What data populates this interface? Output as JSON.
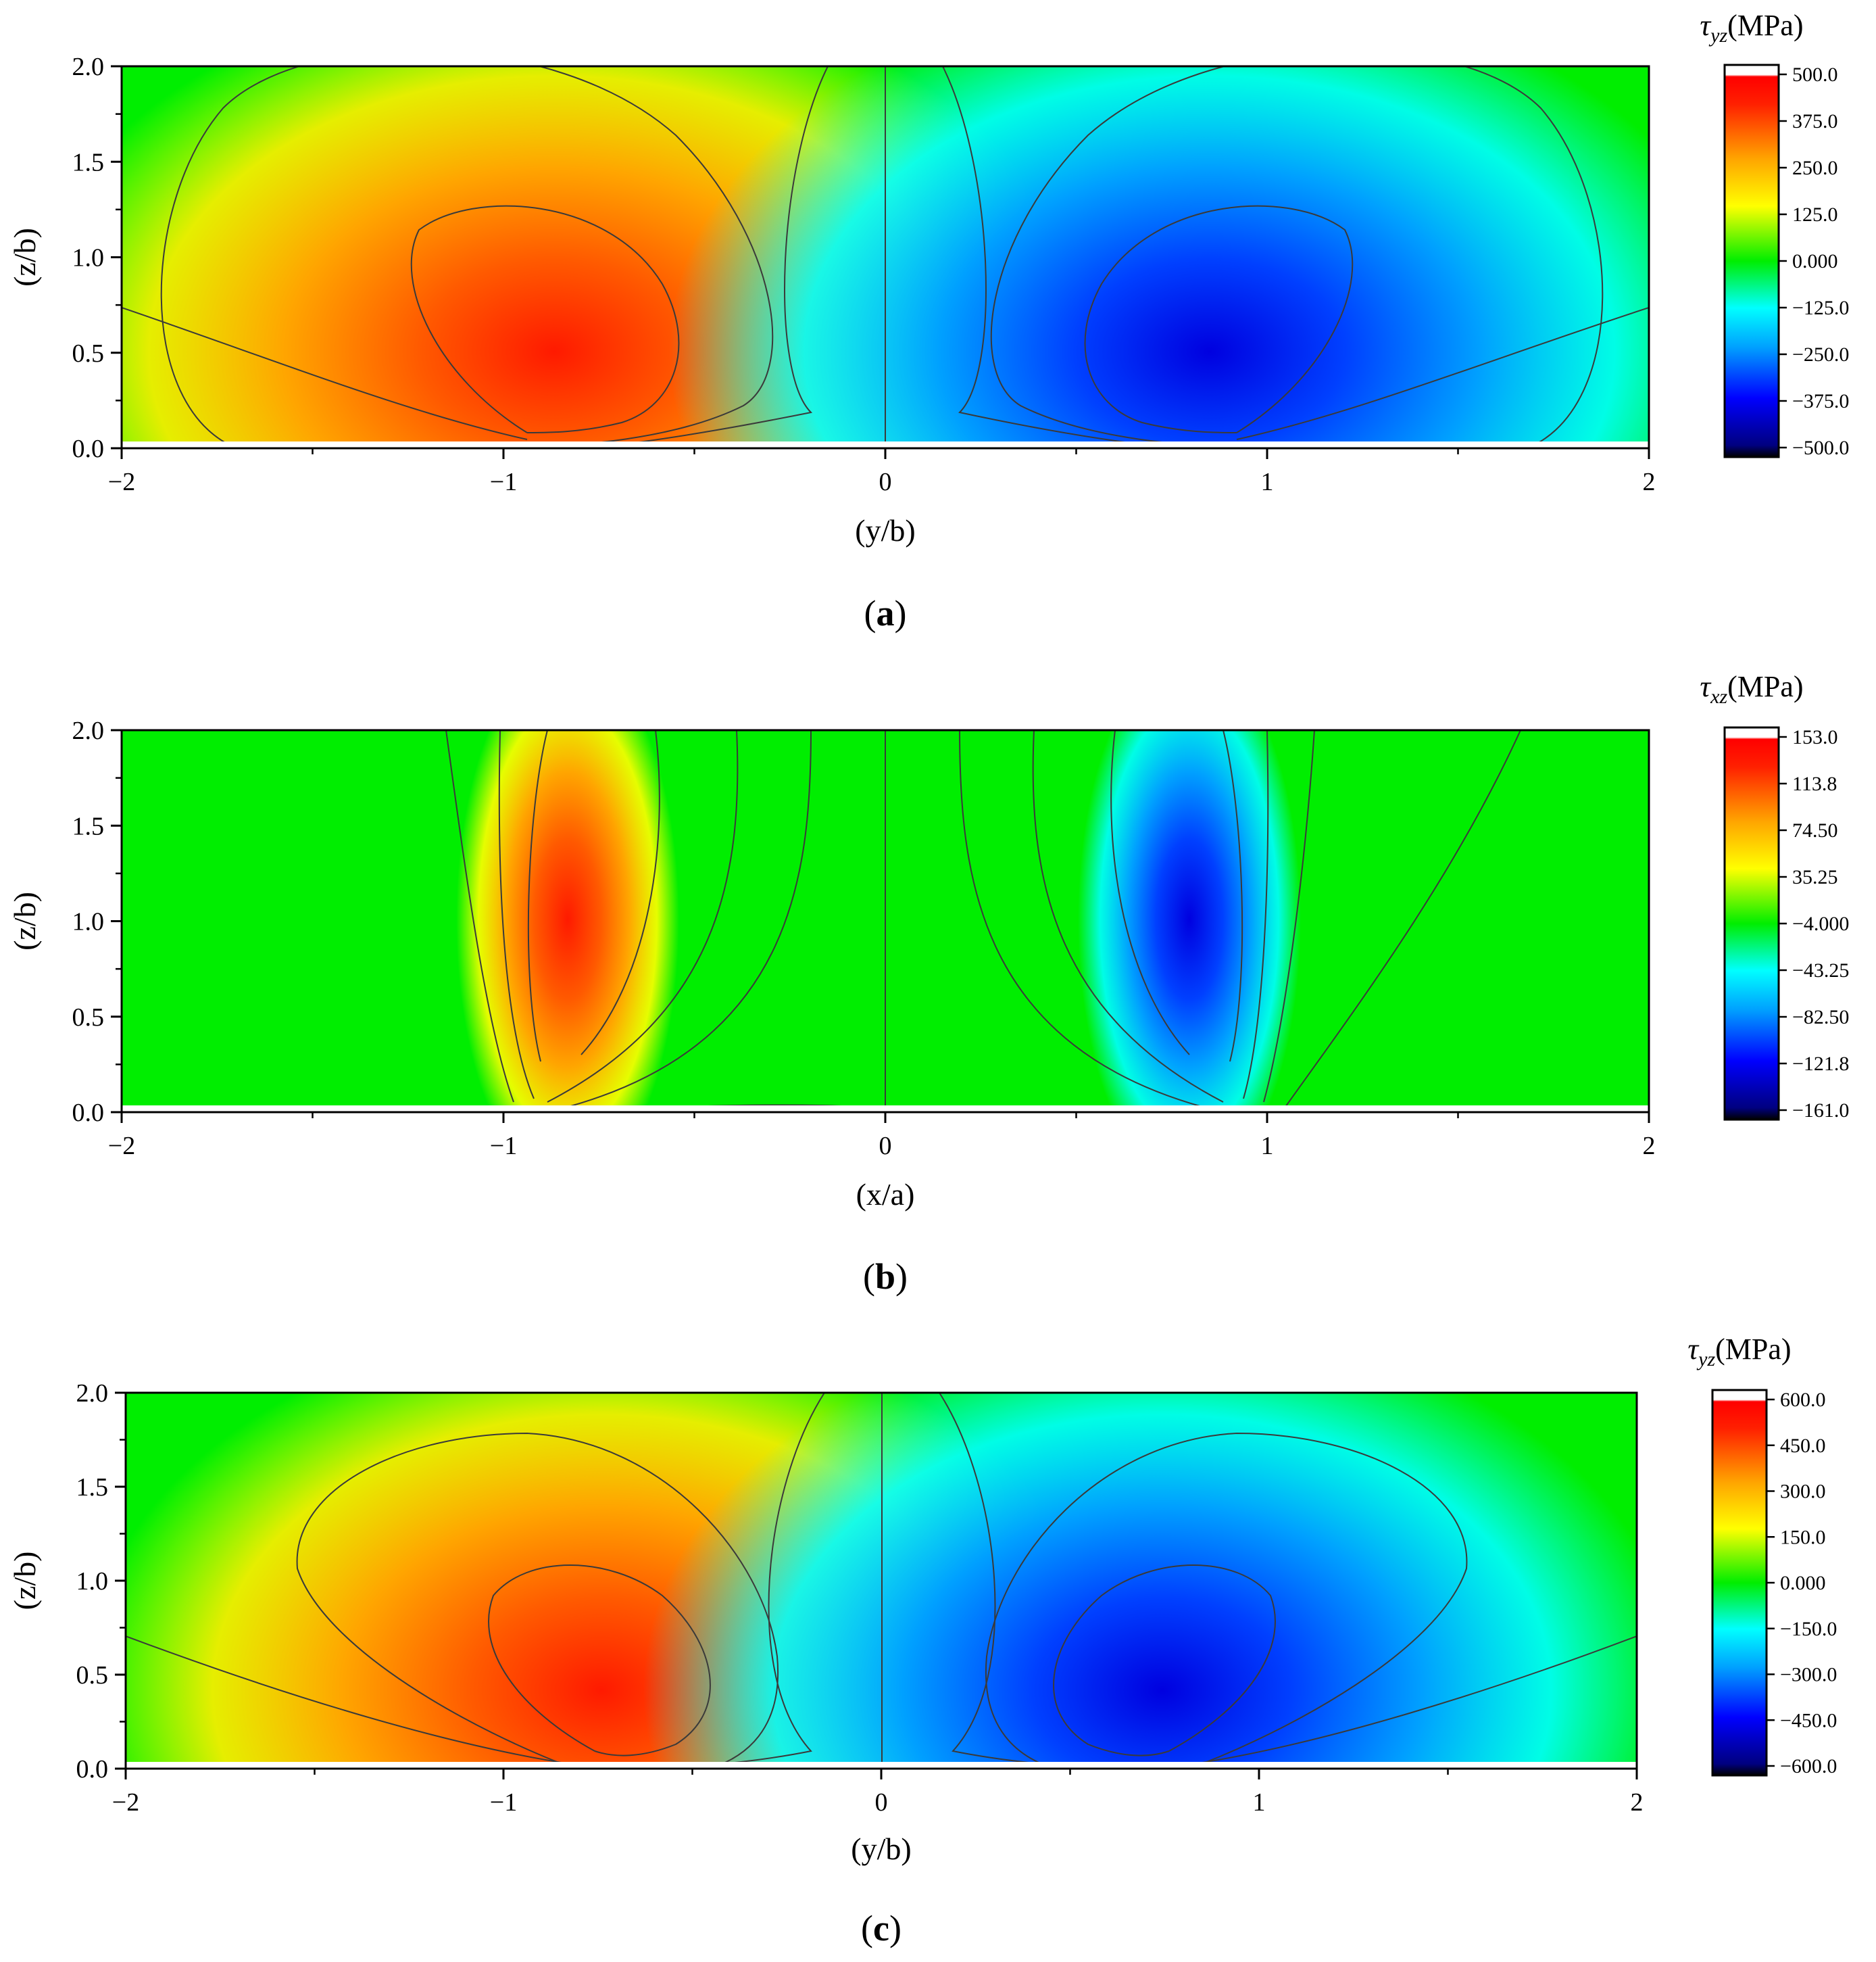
{
  "chart_data": [
    {
      "type": "heatmap",
      "panel_label": "a",
      "colorbar": {
        "symbol": "τ",
        "subscript": "yz",
        "unit": "(MPa)",
        "tick_labels": [
          "500.0",
          "375.0",
          "250.0",
          "125.0",
          "0.000",
          "−125.0",
          "−250.0",
          "−375.0",
          "−500.0"
        ],
        "range": [
          -500,
          500
        ]
      },
      "xlabel": "(y/b)",
      "ylabel": "(z/b)",
      "xlim": [
        -2,
        2
      ],
      "ylim": [
        0,
        2
      ],
      "x_ticks": [
        "−2",
        "−1",
        "0",
        "1",
        "2"
      ],
      "y_ticks": [
        "0.0",
        "0.5",
        "1.0",
        "1.5",
        "2.0"
      ],
      "field": {
        "pattern": "antisymmetric-lobes",
        "positive_peak": {
          "x": -0.86,
          "z": 0.5,
          "value": 500
        },
        "negative_peak": {
          "x": 0.86,
          "z": 0.5,
          "value": -500
        }
      },
      "contour_lines": true,
      "colors": [
        "#000080",
        "#0000ff",
        "#00a0ff",
        "#00ffff",
        "#00ee00",
        "#ffff00",
        "#ffa500",
        "#ff2000",
        "#ffffff"
      ]
    },
    {
      "type": "heatmap",
      "panel_label": "b",
      "colorbar": {
        "symbol": "τ",
        "subscript": "xz",
        "unit": "(MPa)",
        "tick_labels": [
          "153.0",
          "113.8",
          "74.50",
          "35.25",
          "−4.000",
          "−43.25",
          "−82.50",
          "−121.8",
          "−161.0"
        ],
        "range": [
          -161,
          153
        ]
      },
      "xlabel": "(x/a)",
      "ylabel": "(z/b)",
      "xlim": [
        -2,
        2
      ],
      "ylim": [
        0,
        2
      ],
      "x_ticks": [
        "−2",
        "−1",
        "0",
        "1",
        "2"
      ],
      "y_ticks": [
        "0.0",
        "0.5",
        "1.0",
        "1.5",
        "2.0"
      ],
      "field": {
        "pattern": "vertical-bands",
        "positive_peak": {
          "x": -0.86,
          "z": 1.0,
          "value": 153
        },
        "negative_peak": {
          "x": 0.86,
          "z": 1.0,
          "value": -161
        }
      },
      "contour_lines": true,
      "colors": [
        "#000080",
        "#0000ff",
        "#00a0ff",
        "#00ffff",
        "#00ee00",
        "#ffff00",
        "#ffa500",
        "#ff2000",
        "#ffffff"
      ]
    },
    {
      "type": "heatmap",
      "panel_label": "c",
      "colorbar": {
        "symbol": "τ",
        "subscript": "yz",
        "unit": "(MPa)",
        "tick_labels": [
          "600.0",
          "450.0",
          "300.0",
          "150.0",
          "0.000",
          "−150.0",
          "−300.0",
          "−450.0",
          "−600.0"
        ],
        "range": [
          -600,
          600
        ]
      },
      "xlabel": "(y/b)",
      "ylabel": "(z/b)",
      "xlim": [
        -2,
        2
      ],
      "ylim": [
        0,
        2
      ],
      "x_ticks": [
        "−2",
        "−1",
        "0",
        "1",
        "2"
      ],
      "y_ticks": [
        "0.0",
        "0.5",
        "1.0",
        "1.5",
        "2.0"
      ],
      "field": {
        "pattern": "antisymmetric-lobes",
        "positive_peak": {
          "x": -0.72,
          "z": 0.42,
          "value": 600
        },
        "negative_peak": {
          "x": 0.72,
          "z": 0.42,
          "value": -600
        }
      },
      "contour_lines": true,
      "colors": [
        "#000080",
        "#0000ff",
        "#00a0ff",
        "#00ffff",
        "#00ee00",
        "#ffff00",
        "#ffa500",
        "#ff2000",
        "#ffffff"
      ]
    }
  ]
}
